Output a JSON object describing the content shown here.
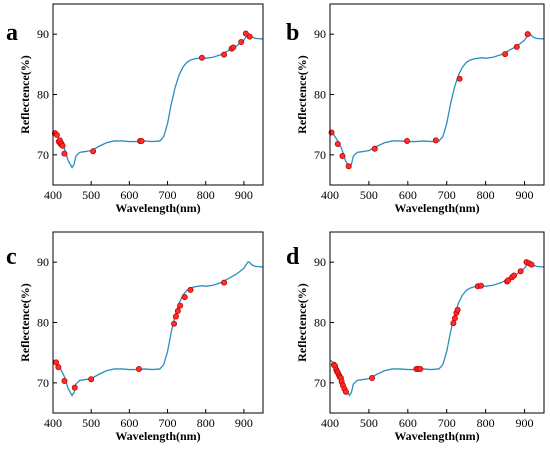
{
  "colors": {
    "curve": "#2a8fbd",
    "point_fill": "#ff2d2d",
    "point_edge": "#c80000",
    "axis": "#000000"
  },
  "chart_data": [
    {
      "type": "line",
      "panel_label": "a",
      "xlabel": "Wavelength(nm)",
      "ylabel": "Reflectence(%)",
      "xlim": [
        400,
        950
      ],
      "ylim": [
        65,
        95
      ],
      "xticks": [
        400,
        500,
        600,
        700,
        800,
        900
      ],
      "yticks": [
        70,
        80,
        90
      ],
      "grid": false,
      "x": [
        400,
        410,
        420,
        430,
        440,
        450,
        455,
        460,
        470,
        480,
        500,
        520,
        540,
        560,
        580,
        600,
        620,
        640,
        660,
        680,
        690,
        700,
        710,
        720,
        730,
        740,
        750,
        760,
        770,
        780,
        790,
        800,
        820,
        840,
        860,
        880,
        900,
        910,
        915,
        920,
        930,
        950
      ],
      "y": [
        73.8,
        73.3,
        72.3,
        71.0,
        69.0,
        67.9,
        68.4,
        69.8,
        70.4,
        70.5,
        70.7,
        71.4,
        72.0,
        72.3,
        72.3,
        72.2,
        72.2,
        72.3,
        72.2,
        72.3,
        73.0,
        75.2,
        78.5,
        81.2,
        83.2,
        84.5,
        85.3,
        85.7,
        85.9,
        86.0,
        86.1,
        86.0,
        86.2,
        86.6,
        87.3,
        88.0,
        89.0,
        90.0,
        90.0,
        89.6,
        89.3,
        89.2
      ],
      "points": [
        [
          405,
          73.6
        ],
        [
          410,
          73.3
        ],
        [
          415,
          72.2
        ],
        [
          418,
          72.4
        ],
        [
          420,
          71.8
        ],
        [
          422,
          71.9
        ],
        [
          425,
          71.5
        ],
        [
          430,
          70.2
        ],
        [
          505,
          70.6
        ],
        [
          628,
          72.3
        ],
        [
          632,
          72.3
        ],
        [
          790,
          86.1
        ],
        [
          848,
          86.6
        ],
        [
          868,
          87.6
        ],
        [
          872,
          87.8
        ],
        [
          893,
          88.7
        ],
        [
          905,
          90.1
        ],
        [
          915,
          89.6
        ]
      ]
    },
    {
      "type": "line",
      "panel_label": "b",
      "xlabel": "Wavelength(nm)",
      "ylabel": "Reflectence(%)",
      "xlim": [
        400,
        950
      ],
      "ylim": [
        65,
        95
      ],
      "xticks": [
        400,
        500,
        600,
        700,
        800,
        900
      ],
      "yticks": [
        70,
        80,
        90
      ],
      "grid": false,
      "x": [
        400,
        410,
        420,
        430,
        440,
        450,
        455,
        460,
        470,
        480,
        500,
        520,
        540,
        560,
        580,
        600,
        620,
        640,
        660,
        680,
        690,
        700,
        710,
        720,
        730,
        740,
        750,
        760,
        770,
        780,
        790,
        800,
        820,
        840,
        860,
        880,
        900,
        910,
        915,
        920,
        930,
        950
      ],
      "y": [
        73.8,
        73.3,
        72.3,
        71.0,
        69.0,
        67.9,
        68.4,
        69.8,
        70.4,
        70.5,
        70.7,
        71.4,
        72.0,
        72.3,
        72.3,
        72.2,
        72.2,
        72.3,
        72.2,
        72.3,
        73.0,
        75.2,
        78.5,
        81.2,
        83.2,
        84.5,
        85.3,
        85.7,
        85.9,
        86.0,
        86.1,
        86.0,
        86.2,
        86.6,
        87.3,
        88.0,
        89.0,
        90.0,
        90.0,
        89.6,
        89.3,
        89.2
      ],
      "points": [
        [
          404,
          73.7
        ],
        [
          420,
          71.8
        ],
        [
          432,
          69.8
        ],
        [
          448,
          68.1
        ],
        [
          515,
          71.0
        ],
        [
          598,
          72.3
        ],
        [
          672,
          72.4
        ],
        [
          733,
          82.6
        ],
        [
          850,
          86.7
        ],
        [
          880,
          87.9
        ],
        [
          908,
          90.0
        ]
      ]
    },
    {
      "type": "line",
      "panel_label": "c",
      "xlabel": "Wavelength(nm)",
      "ylabel": "Reflectence(%)",
      "xlim": [
        400,
        950
      ],
      "ylim": [
        65,
        95
      ],
      "xticks": [
        400,
        500,
        600,
        700,
        800,
        900
      ],
      "yticks": [
        70,
        80,
        90
      ],
      "grid": false,
      "x": [
        400,
        410,
        420,
        430,
        440,
        450,
        455,
        460,
        470,
        480,
        500,
        520,
        540,
        560,
        580,
        600,
        620,
        640,
        660,
        680,
        690,
        700,
        710,
        720,
        730,
        740,
        750,
        760,
        770,
        780,
        790,
        800,
        820,
        840,
        860,
        880,
        900,
        910,
        915,
        920,
        930,
        950
      ],
      "y": [
        73.8,
        73.3,
        72.3,
        71.0,
        69.0,
        67.9,
        68.4,
        69.8,
        70.4,
        70.5,
        70.7,
        71.4,
        72.0,
        72.3,
        72.3,
        72.2,
        72.2,
        72.3,
        72.2,
        72.3,
        73.0,
        75.2,
        78.5,
        81.2,
        83.2,
        84.5,
        85.3,
        85.7,
        85.9,
        86.0,
        86.1,
        86.0,
        86.2,
        86.6,
        87.3,
        88.0,
        89.0,
        90.0,
        90.0,
        89.6,
        89.3,
        89.2
      ],
      "points": [
        [
          408,
          73.4
        ],
        [
          414,
          72.6
        ],
        [
          430,
          70.3
        ],
        [
          457,
          69.2
        ],
        [
          500,
          70.6
        ],
        [
          625,
          72.3
        ],
        [
          717,
          79.8
        ],
        [
          722,
          81.0
        ],
        [
          727,
          81.9
        ],
        [
          733,
          82.8
        ],
        [
          745,
          84.2
        ],
        [
          760,
          85.4
        ],
        [
          848,
          86.6
        ]
      ]
    },
    {
      "type": "line",
      "panel_label": "d",
      "xlabel": "Wavelength(nm)",
      "ylabel": "Reflectence(%)",
      "xlim": [
        400,
        950
      ],
      "ylim": [
        65,
        95
      ],
      "xticks": [
        400,
        500,
        600,
        700,
        800,
        900
      ],
      "yticks": [
        70,
        80,
        90
      ],
      "grid": false,
      "x": [
        400,
        410,
        420,
        430,
        440,
        450,
        455,
        460,
        470,
        480,
        500,
        520,
        540,
        560,
        580,
        600,
        620,
        640,
        660,
        680,
        690,
        700,
        710,
        720,
        730,
        740,
        750,
        760,
        770,
        780,
        790,
        800,
        820,
        840,
        860,
        880,
        900,
        910,
        915,
        920,
        930,
        950
      ],
      "y": [
        73.8,
        73.3,
        72.3,
        71.0,
        69.0,
        67.9,
        68.4,
        69.8,
        70.4,
        70.5,
        70.7,
        71.4,
        72.0,
        72.3,
        72.3,
        72.2,
        72.2,
        72.3,
        72.2,
        72.3,
        73.0,
        75.2,
        78.5,
        81.2,
        83.2,
        84.5,
        85.3,
        85.7,
        85.9,
        86.0,
        86.1,
        86.0,
        86.2,
        86.6,
        87.3,
        88.0,
        89.0,
        90.0,
        90.0,
        89.6,
        89.3,
        89.2
      ],
      "points": [
        [
          410,
          73.0
        ],
        [
          413,
          72.8
        ],
        [
          416,
          72.2
        ],
        [
          418,
          71.9
        ],
        [
          420,
          71.7
        ],
        [
          423,
          71.3
        ],
        [
          425,
          71.0
        ],
        [
          428,
          70.8
        ],
        [
          430,
          70.2
        ],
        [
          433,
          69.6
        ],
        [
          437,
          69.0
        ],
        [
          441,
          68.5
        ],
        [
          508,
          70.8
        ],
        [
          622,
          72.3
        ],
        [
          627,
          72.3
        ],
        [
          632,
          72.3
        ],
        [
          717,
          79.9
        ],
        [
          721,
          80.7
        ],
        [
          725,
          81.6
        ],
        [
          728,
          82.1
        ],
        [
          780,
          86.0
        ],
        [
          788,
          86.1
        ],
        [
          855,
          86.8
        ],
        [
          858,
          87.0
        ],
        [
          868,
          87.5
        ],
        [
          873,
          87.8
        ],
        [
          890,
          88.5
        ],
        [
          905,
          90.0
        ],
        [
          912,
          89.8
        ],
        [
          918,
          89.6
        ]
      ]
    }
  ]
}
